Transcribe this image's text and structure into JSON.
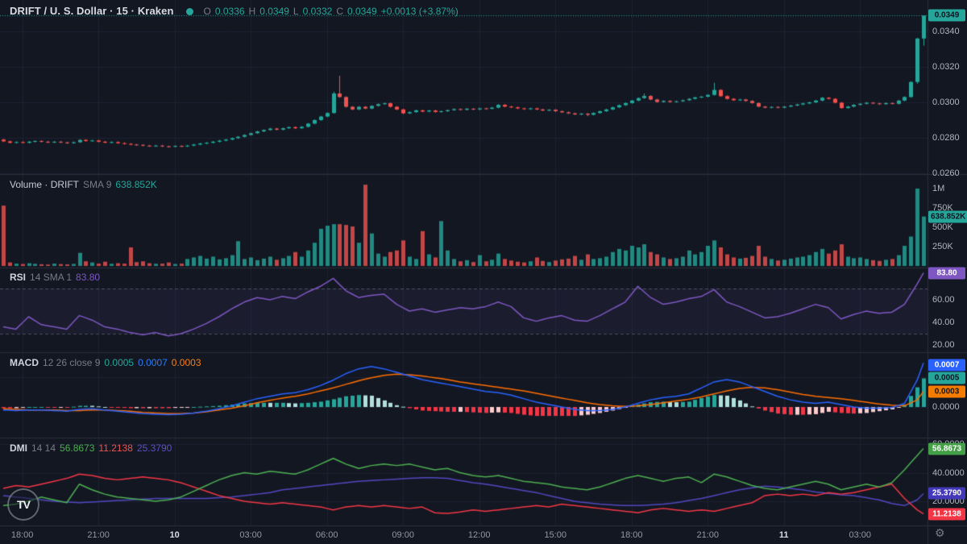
{
  "header": {
    "symbol": "DRIFT / U. S. Dollar · 15 · Kraken",
    "status_dot": "realtime-data-dot",
    "o_label": "O",
    "o": "0.0336",
    "h_label": "H",
    "h": "0.0349",
    "l_label": "L",
    "l": "0.0332",
    "c_label": "C",
    "c": "0.0349",
    "change": "+0.0013 (+3.87%)"
  },
  "panes": {
    "volume": {
      "title": "Volume · DRIFT",
      "param": "SMA 9",
      "value": "638.852K"
    },
    "rsi": {
      "title": "RSI",
      "param": "14 SMA 1",
      "value": "83.80"
    },
    "macd": {
      "title": "MACD",
      "param": "12 26 close 9",
      "hist": "0.0005",
      "macd": "0.0007",
      "signal": "0.0003"
    },
    "dmi": {
      "title": "DMI",
      "param": "14 14",
      "plus": "56.8673",
      "minus": "11.2138",
      "adx": "25.3790"
    }
  },
  "axis": {
    "price": {
      "labels": [
        {
          "text": "0.0340",
          "value": 0.034
        },
        {
          "text": "0.0320",
          "value": 0.032
        },
        {
          "text": "0.0300",
          "value": 0.03
        },
        {
          "text": "0.0280",
          "value": 0.028
        },
        {
          "text": "0.0260",
          "value": 0.026
        }
      ],
      "badge": {
        "text": "0.0349",
        "value": 0.0349,
        "color": "#26a69a",
        "tc": "#0e1420"
      }
    },
    "volume": {
      "labels": [
        {
          "text": "1M",
          "value": 1000
        },
        {
          "text": "750K",
          "value": 750
        },
        {
          "text": "500K",
          "value": 500
        },
        {
          "text": "250K",
          "value": 250
        }
      ],
      "badge": {
        "text": "638.852K",
        "value": 639,
        "color": "#26a69a",
        "tc": "#0e1420"
      }
    },
    "rsi": {
      "labels": [
        {
          "text": "60.00",
          "value": 60
        },
        {
          "text": "40.00",
          "value": 40
        },
        {
          "text": "20.00",
          "value": 20
        }
      ],
      "bands": [
        70,
        30
      ],
      "badge": {
        "text": "83.80",
        "value": 83.8,
        "color": "#7e57c2",
        "tc": "#ffffff"
      }
    },
    "macd": {
      "labels": [
        {
          "text": "0.0005",
          "value": 0.0005
        },
        {
          "text": "0.0000",
          "value": 0
        }
      ],
      "badges": [
        {
          "text": "0.0007",
          "value": 0.0007,
          "color": "#2962ff",
          "tc": "#ffffff"
        },
        {
          "text": "0.0005",
          "value": 0.00048,
          "color": "#26a69a",
          "tc": "#0e1420"
        },
        {
          "text": "0.0003",
          "value": 0.00026,
          "color": "#f57c00",
          "tc": "#16181d"
        }
      ]
    },
    "dmi": {
      "labels": [
        {
          "text": "60.0000",
          "value": 60
        },
        {
          "text": "40.0000",
          "value": 40
        },
        {
          "text": "20.0000",
          "value": 20
        }
      ],
      "badges": [
        {
          "text": "56.8673",
          "value": 56.8673,
          "color": "#43a047",
          "tc": "#ffffff"
        },
        {
          "text": "25.3790",
          "value": 25.379,
          "color": "#4338b8",
          "tc": "#ffffff"
        },
        {
          "text": "11.2138",
          "value": 11.2138,
          "color": "#f23645",
          "tc": "#ffffff"
        }
      ]
    }
  },
  "time_axis": {
    "ticks": [
      {
        "label": "18:00",
        "i": 3
      },
      {
        "label": "21:00",
        "i": 15
      },
      {
        "label": "10",
        "i": 27,
        "major": true
      },
      {
        "label": "03:00",
        "i": 39
      },
      {
        "label": "06:00",
        "i": 51
      },
      {
        "label": "09:00",
        "i": 63
      },
      {
        "label": "12:00",
        "i": 75
      },
      {
        "label": "15:00",
        "i": 87
      },
      {
        "label": "18:00",
        "i": 99
      },
      {
        "label": "21:00",
        "i": 111
      },
      {
        "label": "11",
        "i": 123,
        "major": true
      },
      {
        "label": "03:00",
        "i": 135
      }
    ]
  },
  "footer": {
    "logo_text": "TV",
    "settings_icon": "gear"
  },
  "colors": {
    "bg": "#131722",
    "grid": "#1c2230",
    "separator": "#2a2e39",
    "up": "#26a69a",
    "down": "#ef5350",
    "vol_up": "rgba(38,166,154,0.8)",
    "vol_down": "rgba(239,83,80,0.8)",
    "rsi": "#7e57c2",
    "rsi_band": "rgba(126,87,194,0.08)",
    "rsi_dash": "rgba(140,145,160,0.45)",
    "macd_line": "#2962ff",
    "signal_line": "#ff6d00",
    "hist_up": "#26a69a",
    "hist_up_fade": "#b2dfdb",
    "hist_down": "#f23645",
    "hist_down_fade": "#fccbcd",
    "di_plus": "#4caf50",
    "di_minus": "#f23645",
    "adx": "#5148c0",
    "current_price_line": "#26a69a"
  },
  "chart_data": {
    "type": "candlestick-multi-pane",
    "title": "DRIFT/USD 15m Kraken with Volume, RSI(14), MACD(12,26,9), DMI(14,14)",
    "interval_minutes": 15,
    "price": {
      "open_first": 0.0279,
      "default_wick": 4e-05,
      "closes": [
        0.0278,
        0.02772,
        0.02776,
        0.02772,
        0.02778,
        0.02782,
        0.02778,
        0.02774,
        0.02778,
        0.02774,
        0.0277,
        0.02775,
        0.02788,
        0.02782,
        0.02785,
        0.02778,
        0.02773,
        0.02776,
        0.0277,
        0.02766,
        0.02762,
        0.0276,
        0.02756,
        0.02753,
        0.02756,
        0.02752,
        0.0275,
        0.02754,
        0.02752,
        0.02756,
        0.02762,
        0.02768,
        0.02772,
        0.02778,
        0.02784,
        0.0279,
        0.02798,
        0.02806,
        0.02816,
        0.02826,
        0.02836,
        0.02844,
        0.02852,
        0.02846,
        0.02854,
        0.0286,
        0.02854,
        0.02862,
        0.0288,
        0.029,
        0.0292,
        0.0294,
        0.0305,
        0.0303,
        0.02975,
        0.0296,
        0.02975,
        0.02965,
        0.0298,
        0.0299,
        0.02995,
        0.02975,
        0.0296,
        0.02938,
        0.02945,
        0.02955,
        0.02948,
        0.02954,
        0.02946,
        0.0295,
        0.02956,
        0.02962,
        0.02958,
        0.02964,
        0.0296,
        0.02966,
        0.02964,
        0.0297,
        0.02986,
        0.02976,
        0.02972,
        0.02966,
        0.02962,
        0.02966,
        0.0296,
        0.02954,
        0.02958,
        0.0295,
        0.02944,
        0.02938,
        0.02932,
        0.02936,
        0.0293,
        0.0294,
        0.0295,
        0.0296,
        0.02972,
        0.02984,
        0.02996,
        0.0301,
        0.03024,
        0.03036,
        0.03016,
        0.03002,
        0.03008,
        0.03002,
        0.03006,
        0.03012,
        0.0302,
        0.03028,
        0.03032,
        0.03042,
        0.0307,
        0.03035,
        0.0302,
        0.03012,
        0.03016,
        0.03008,
        0.02996,
        0.02976,
        0.0297,
        0.02974,
        0.0297,
        0.02976,
        0.02982,
        0.02988,
        0.02994,
        0.03,
        0.0301,
        0.03026,
        0.0302,
        0.02998,
        0.02968,
        0.02976,
        0.02986,
        0.02992,
        0.02998,
        0.02994,
        0.0299,
        0.02996,
        0.02992,
        0.0301,
        0.0303,
        0.03115,
        0.0336,
        0.0349
      ],
      "wick_overrides": {
        "26": {
          "l": 0.02745
        },
        "52": {
          "h": 0.0306
        },
        "53": {
          "h": 0.0315
        },
        "92": {
          "l": 0.02922
        },
        "101": {
          "h": 0.0305
        },
        "112": {
          "h": 0.0311
        },
        "144": {
          "l": 0.03105
        },
        "145": {
          "h": 0.0349,
          "l": 0.0332
        }
      }
    },
    "volume_k": [
      780,
      45,
      30,
      25,
      35,
      28,
      22,
      18,
      30,
      24,
      20,
      26,
      170,
      60,
      45,
      30,
      55,
      28,
      35,
      30,
      240,
      50,
      60,
      35,
      28,
      30,
      45,
      25,
      30,
      90,
      110,
      130,
      95,
      120,
      85,
      100,
      140,
      320,
      90,
      110,
      75,
      95,
      120,
      80,
      100,
      130,
      180,
      120,
      200,
      300,
      480,
      520,
      540,
      540,
      530,
      510,
      300,
      1050,
      420,
      160,
      120,
      180,
      200,
      330,
      120,
      90,
      450,
      150,
      110,
      580,
      200,
      90,
      60,
      75,
      50,
      140,
      60,
      80,
      160,
      90,
      70,
      55,
      45,
      60,
      110,
      65,
      50,
      70,
      85,
      95,
      130,
      80,
      150,
      90,
      100,
      120,
      180,
      220,
      200,
      260,
      240,
      280,
      180,
      150,
      110,
      90,
      100,
      120,
      200,
      150,
      180,
      260,
      330,
      240,
      150,
      110,
      95,
      105,
      130,
      260,
      120,
      90,
      70,
      80,
      95,
      110,
      120,
      140,
      180,
      220,
      160,
      200,
      280,
      120,
      100,
      110,
      90,
      75,
      65,
      80,
      90,
      140,
      260,
      380,
      1000,
      639
    ],
    "rsi": {
      "step": 2,
      "end_index": 145,
      "end": 83.8,
      "values": [
        36,
        34,
        45,
        38,
        36,
        34,
        46,
        42,
        36,
        34,
        31,
        29,
        31,
        28,
        30,
        34,
        39,
        45,
        52,
        58,
        62,
        60,
        63,
        61,
        67,
        72,
        79,
        68,
        62,
        64,
        65,
        56,
        50,
        52,
        49,
        51,
        53,
        52,
        54,
        58,
        54,
        44,
        41,
        44,
        46,
        42,
        41,
        46,
        52,
        58,
        72,
        62,
        56,
        58,
        61,
        63,
        69,
        58,
        54,
        49,
        44,
        45,
        48,
        52,
        56,
        53,
        43,
        47,
        50,
        48,
        49,
        56,
        74
      ]
    },
    "macd": {
      "scale": 0.0001,
      "step": 2,
      "end_index": 145,
      "end": 7.4,
      "values": [
        -0.5,
        -0.6,
        -0.5,
        -0.5,
        -0.6,
        -0.7,
        -0.4,
        -0.3,
        -0.5,
        -0.7,
        -0.9,
        -1.1,
        -1.2,
        -1.3,
        -1.2,
        -1.0,
        -0.7,
        -0.3,
        0.2,
        0.8,
        1.4,
        1.8,
        2.2,
        2.4,
        2.9,
        3.6,
        4.5,
        5.6,
        6.4,
        6.8,
        6.4,
        5.8,
        5.2,
        4.6,
        4.2,
        3.8,
        3.4,
        3.0,
        2.6,
        2.4,
        2.0,
        1.4,
        0.8,
        0.4,
        0.0,
        -0.4,
        -0.6,
        -0.6,
        -0.4,
        0.0,
        0.6,
        1.2,
        1.6,
        1.8,
        2.2,
        3.2,
        4.2,
        4.6,
        4.2,
        3.4,
        2.6,
        1.8,
        1.2,
        0.8,
        0.6,
        0.8,
        0.4,
        0.0,
        -0.2,
        -0.2,
        -0.1,
        0.6,
        4.5
      ]
    },
    "macd_signal": {
      "scale": 0.0001,
      "step": 2,
      "end_index": 145,
      "end": 2.6,
      "values": [
        -0.3,
        -0.4,
        -0.5,
        -0.5,
        -0.5,
        -0.6,
        -0.6,
        -0.5,
        -0.5,
        -0.6,
        -0.7,
        -0.9,
        -1.0,
        -1.1,
        -1.1,
        -1.0,
        -0.8,
        -0.5,
        -0.2,
        0.2,
        0.7,
        1.1,
        1.5,
        1.8,
        2.2,
        2.7,
        3.2,
        3.8,
        4.4,
        4.9,
        5.3,
        5.5,
        5.4,
        5.2,
        4.9,
        4.6,
        4.2,
        3.9,
        3.6,
        3.3,
        3.0,
        2.7,
        2.3,
        1.9,
        1.5,
        1.1,
        0.7,
        0.4,
        0.2,
        0.1,
        0.2,
        0.4,
        0.7,
        1.0,
        1.3,
        1.7,
        2.2,
        2.7,
        3.1,
        3.3,
        3.2,
        2.9,
        2.5,
        2.1,
        1.8,
        1.6,
        1.4,
        1.1,
        0.8,
        0.5,
        0.3,
        0.2,
        1.2
      ]
    },
    "di_plus": {
      "step": 2,
      "end_index": 145,
      "end": 56.87,
      "values": [
        17,
        18,
        20,
        23,
        21,
        19,
        32,
        28,
        25,
        23,
        22,
        21,
        20,
        21,
        23,
        27,
        31,
        35,
        38,
        40,
        39,
        41,
        40,
        39,
        42,
        46,
        50,
        46,
        43,
        45,
        46,
        45,
        46,
        44,
        42,
        43,
        40,
        38,
        37,
        38,
        36,
        34,
        33,
        32,
        30,
        29,
        28,
        30,
        33,
        36,
        38,
        36,
        34,
        36,
        37,
        33,
        39,
        37,
        34,
        31,
        29,
        28,
        30,
        32,
        34,
        32,
        28,
        30,
        32,
        30,
        33,
        42,
        52
      ]
    },
    "di_minus": {
      "step": 2,
      "end_index": 145,
      "end": 11.21,
      "values": [
        29,
        31,
        30,
        32,
        34,
        36,
        39,
        38,
        36,
        35,
        36,
        37,
        36,
        35,
        33,
        30,
        27,
        24,
        22,
        20,
        19,
        18,
        19,
        18,
        17,
        16,
        14,
        16,
        17,
        16,
        17,
        16,
        15,
        16,
        12,
        11.5,
        12.5,
        14,
        13,
        14,
        15,
        16,
        17,
        16,
        18,
        17,
        16,
        15,
        14,
        13,
        12,
        14,
        15,
        14,
        13,
        14,
        13,
        15,
        17,
        19,
        24,
        25,
        24,
        25,
        24,
        26,
        25,
        26,
        28,
        30,
        32,
        22,
        14
      ]
    },
    "adx": {
      "step": 2,
      "end_index": 145,
      "end": 25.38,
      "values": [
        24,
        23,
        22,
        21,
        20,
        19.5,
        19,
        19.5,
        20,
        20.5,
        21,
        21.5,
        22,
        22,
        22,
        22,
        22,
        22.5,
        23,
        24,
        25,
        26,
        28,
        29,
        30,
        31,
        32,
        33,
        34,
        34.5,
        35,
        35.5,
        36,
        36.5,
        36.5,
        36,
        34.5,
        33,
        32,
        30.5,
        29,
        27.5,
        26,
        24,
        22,
        20,
        19,
        18,
        17.5,
        17,
        17,
        17.5,
        18,
        19,
        20.5,
        22,
        24,
        26,
        28,
        29.5,
        30.5,
        30,
        29,
        28,
        26.5,
        25.5,
        24.5,
        24,
        22.5,
        21,
        18.5,
        17,
        21
      ]
    }
  }
}
